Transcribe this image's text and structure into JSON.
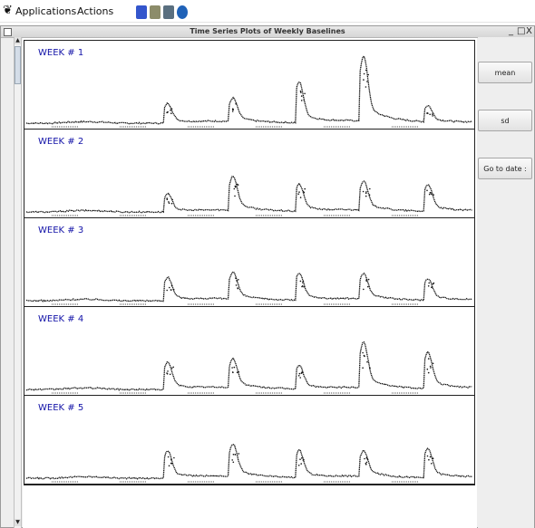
{
  "topbar": {
    "applications_label": "Applications",
    "actions_label": "Actions",
    "logo_glyph": "❦",
    "launchers": [
      {
        "name": "launcher-menu-icon",
        "color": "#3355cc"
      },
      {
        "name": "launcher-notes-icon",
        "color": "#8c8c6a"
      },
      {
        "name": "launcher-monitor-icon",
        "color": "#5a6f7f"
      },
      {
        "name": "launcher-globe-icon",
        "color": "#1f62b8"
      }
    ]
  },
  "window": {
    "title": "Time Series Plots of Weekly Baselines",
    "minimize_label": "_",
    "maximize_label": "□",
    "close_label": "X"
  },
  "scrollbar": {
    "up_arrow": "▲",
    "down_arrow": "▼"
  },
  "sidebar": {
    "buttons": [
      {
        "label": "mean"
      },
      {
        "label": "sd"
      },
      {
        "label": "Go to date :"
      }
    ]
  },
  "panels": [
    {
      "label": "WEEK # 1",
      "peaks": [
        0.22,
        0.26,
        0.45,
        0.72,
        0.18
      ]
    },
    {
      "label": "WEEK # 2",
      "peaks": [
        0.2,
        0.38,
        0.3,
        0.32,
        0.3
      ]
    },
    {
      "label": "WEEK # 3",
      "peaks": [
        0.26,
        0.3,
        0.3,
        0.28,
        0.24
      ]
    },
    {
      "label": "WEEK # 4",
      "peaks": [
        0.3,
        0.32,
        0.26,
        0.5,
        0.4
      ]
    },
    {
      "label": "WEEK # 5",
      "peaks": [
        0.3,
        0.36,
        0.3,
        0.28,
        0.32
      ]
    }
  ],
  "colors": {
    "panel_label": "#1313a8",
    "trace": "#111111"
  }
}
